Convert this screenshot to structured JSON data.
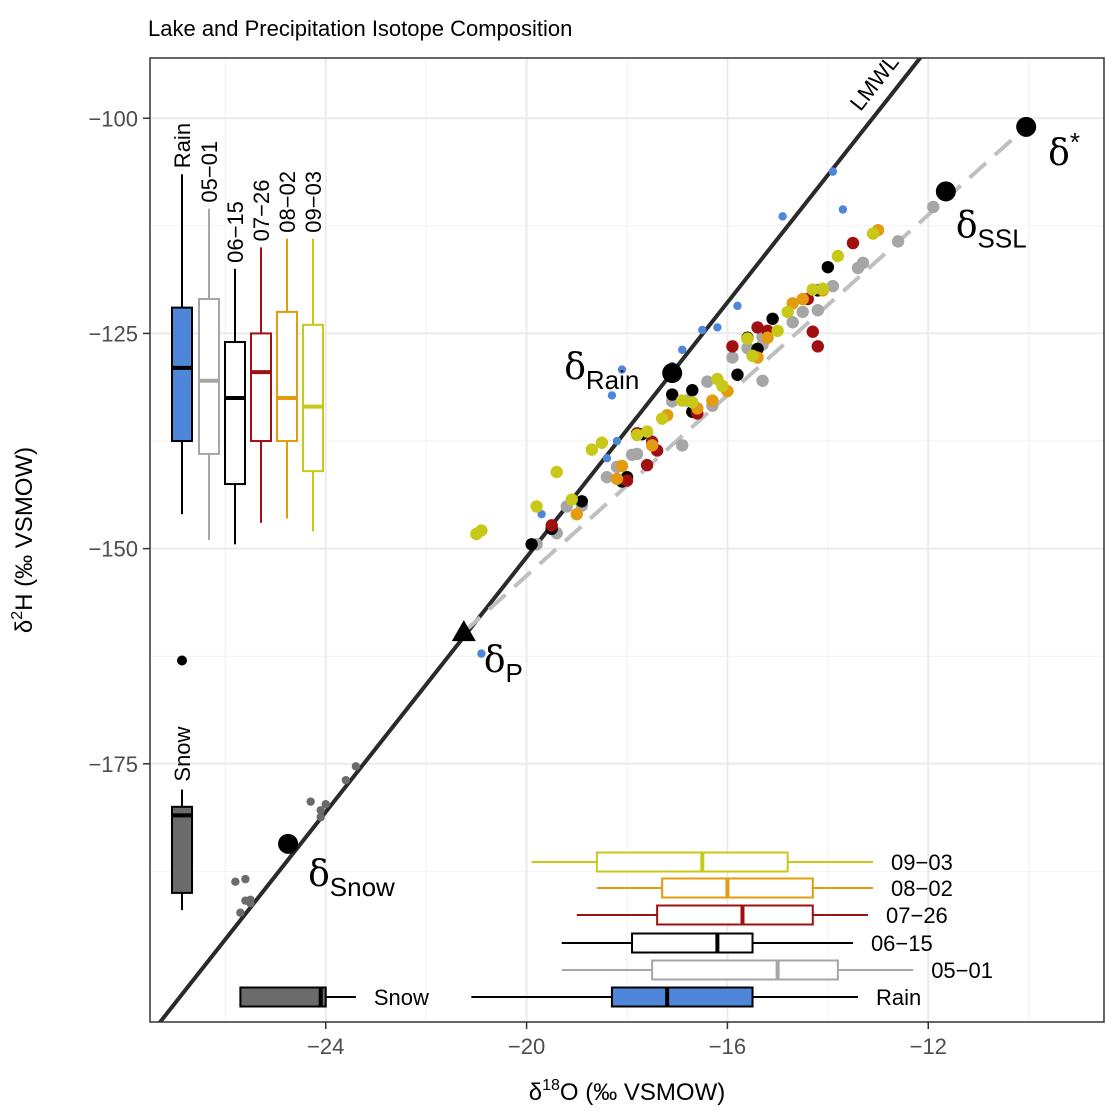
{
  "chart_data": {
    "type": "scatter",
    "title": "Lake and Precipitation Isotope Composition",
    "xlabel": {
      "main": "δ",
      "sup": "18",
      "rest": "O (‰ VSMOW)"
    },
    "ylabel": {
      "main": "δ",
      "sup": "2",
      "rest": "H (‰ VSMOW)"
    },
    "xlim": [
      -27.5,
      -8.5
    ],
    "ylim": [
      -205,
      -93
    ],
    "x_ticks": [
      -24,
      -20,
      -16,
      -12
    ],
    "x_tick_labels": [
      "−24",
      "−20",
      "−16",
      "−12"
    ],
    "y_ticks": [
      -175,
      -150,
      -125,
      -100
    ],
    "y_tick_labels": [
      "−175",
      "−150",
      "−125",
      "−100"
    ],
    "grid": true,
    "colors": {
      "Rain": "#4e86d9",
      "Snow": "#6b6b6b",
      "05-01": "#a6a6a6",
      "06-15": "#000000",
      "07-26": "#a01010",
      "08-02": "#e39b0f",
      "09-03": "#c8c818",
      "trend": "#bfbfbf",
      "lmwl": "#2a2a2a"
    },
    "lmwl": {
      "label": "LMWL",
      "slope": 7.4,
      "intercept": -3.0
    },
    "evaporation_line": {
      "from": [
        -21.25,
        -159.7
      ],
      "to": [
        -10.05,
        -101.0
      ]
    },
    "key_points": [
      {
        "name": "δ*",
        "symbol": "δ",
        "sub": "",
        "sup": "*",
        "x": -10.05,
        "y": -101.0,
        "marker": "circle"
      },
      {
        "name": "δSSL",
        "symbol": "δ",
        "sub": "SSL",
        "sup": "",
        "x": -11.65,
        "y": -108.5,
        "marker": "circle"
      },
      {
        "name": "δRain",
        "symbol": "δ",
        "sub": "Rain",
        "sup": "",
        "x": -17.1,
        "y": -129.6,
        "marker": "circle"
      },
      {
        "name": "δP",
        "symbol": "δ",
        "sub": "P",
        "sup": "",
        "x": -21.25,
        "y": -159.7,
        "marker": "triangle"
      },
      {
        "name": "δSnow",
        "symbol": "δ",
        "sub": "Snow",
        "sup": "",
        "x": -24.75,
        "y": -184.3,
        "marker": "circle"
      }
    ],
    "series": [
      {
        "name": "Rain",
        "size": "small",
        "points": [
          [
            -13.9,
            -106.2
          ],
          [
            -14.9,
            -111.4
          ],
          [
            -13.7,
            -110.6
          ],
          [
            -18.1,
            -129.2
          ],
          [
            -16.9,
            -126.9
          ],
          [
            -15.8,
            -121.8
          ],
          [
            -16.5,
            -124.6
          ],
          [
            -17.1,
            -128.8
          ],
          [
            -16.2,
            -124.3
          ],
          [
            -18.3,
            -132.2
          ],
          [
            -18.2,
            -137.5
          ],
          [
            -19.7,
            -146.0
          ],
          [
            -20.9,
            -162.2
          ],
          [
            -18.4,
            -139.5
          ]
        ]
      },
      {
        "name": "Snow",
        "size": "small",
        "points": [
          [
            -23.4,
            -175.3
          ],
          [
            -23.6,
            -176.9
          ],
          [
            -24.0,
            -179.7
          ],
          [
            -24.1,
            -180.4
          ],
          [
            -24.1,
            -181.2
          ],
          [
            -24.3,
            -179.4
          ],
          [
            -25.8,
            -188.7
          ],
          [
            -25.6,
            -188.4
          ],
          [
            -25.5,
            -190.8
          ],
          [
            -25.5,
            -191.2
          ],
          [
            -25.7,
            -192.3
          ],
          [
            -25.6,
            -190.9
          ]
        ]
      },
      {
        "name": "05-01",
        "size": "large",
        "points": [
          [
            -11.9,
            -110.3
          ],
          [
            -12.6,
            -114.3
          ],
          [
            -13.4,
            -117.4
          ],
          [
            -13.9,
            -119.5
          ],
          [
            -14.5,
            -122.5
          ],
          [
            -14.7,
            -123.7
          ],
          [
            -15.3,
            -125.4
          ],
          [
            -15.3,
            -126.3
          ],
          [
            -15.9,
            -127.8
          ],
          [
            -16.4,
            -130.6
          ],
          [
            -17.1,
            -132.9
          ],
          [
            -17.6,
            -136.6
          ],
          [
            -18.4,
            -141.7
          ],
          [
            -19.2,
            -145.1
          ],
          [
            -19.4,
            -148.2
          ],
          [
            -19.8,
            -149.5
          ],
          [
            -15.3,
            -130.5
          ],
          [
            -16.3,
            -133.4
          ],
          [
            -17.9,
            -139.1
          ],
          [
            -18.2,
            -140.5
          ],
          [
            -18.9,
            -145.0
          ],
          [
            -16.9,
            -138.0
          ],
          [
            -13.3,
            -116.8
          ],
          [
            -14.2,
            -122.3
          ],
          [
            -15.6,
            -126.7
          ],
          [
            -16.8,
            -132.8
          ],
          [
            -17.8,
            -139.0
          ]
        ]
      },
      {
        "name": "06-15",
        "size": "large",
        "points": [
          [
            -14.0,
            -117.3
          ],
          [
            -14.2,
            -120.0
          ],
          [
            -15.1,
            -123.3
          ],
          [
            -15.6,
            -125.5
          ],
          [
            -15.8,
            -129.8
          ],
          [
            -16.7,
            -131.6
          ],
          [
            -17.1,
            -132.1
          ],
          [
            -16.7,
            -134.1
          ],
          [
            -17.7,
            -136.7
          ],
          [
            -18.0,
            -141.7
          ],
          [
            -18.1,
            -142.2
          ],
          [
            -18.9,
            -144.5
          ],
          [
            -19.5,
            -147.7
          ],
          [
            -19.9,
            -149.5
          ],
          [
            -15.4,
            -126.8
          ]
        ]
      },
      {
        "name": "07-26",
        "size": "large",
        "points": [
          [
            -13.5,
            -114.5
          ],
          [
            -14.4,
            -121.0
          ],
          [
            -15.2,
            -124.7
          ],
          [
            -14.3,
            -124.8
          ],
          [
            -14.2,
            -126.5
          ],
          [
            -15.9,
            -126.5
          ],
          [
            -16.6,
            -134.3
          ],
          [
            -17.5,
            -137.6
          ],
          [
            -17.8,
            -136.6
          ],
          [
            -17.6,
            -140.3
          ],
          [
            -18.0,
            -142.1
          ],
          [
            -19.5,
            -147.3
          ],
          [
            -17.4,
            -138.6
          ],
          [
            -15.4,
            -124.3
          ]
        ]
      },
      {
        "name": "08-02",
        "size": "large",
        "points": [
          [
            -13.0,
            -113.0
          ],
          [
            -14.1,
            -120.0
          ],
          [
            -14.7,
            -121.5
          ],
          [
            -15.2,
            -125.5
          ],
          [
            -15.4,
            -127.8
          ],
          [
            -16.0,
            -131.7
          ],
          [
            -16.6,
            -133.7
          ],
          [
            -17.2,
            -134.5
          ],
          [
            -18.2,
            -141.9
          ],
          [
            -19.0,
            -146.0
          ],
          [
            -14.5,
            -121.0
          ],
          [
            -16.3,
            -132.8
          ],
          [
            -17.5,
            -138.0
          ],
          [
            -18.1,
            -140.4
          ]
        ]
      },
      {
        "name": "09-03",
        "size": "large",
        "points": [
          [
            -13.1,
            -113.4
          ],
          [
            -13.8,
            -116.0
          ],
          [
            -14.3,
            -119.9
          ],
          [
            -14.1,
            -119.8
          ],
          [
            -14.8,
            -122.5
          ],
          [
            -15.0,
            -124.7
          ],
          [
            -15.6,
            -125.6
          ],
          [
            -15.5,
            -127.6
          ],
          [
            -16.2,
            -130.3
          ],
          [
            -16.9,
            -132.8
          ],
          [
            -17.3,
            -134.9
          ],
          [
            -17.8,
            -136.8
          ],
          [
            -18.5,
            -137.7
          ],
          [
            -19.1,
            -144.3
          ],
          [
            -19.4,
            -141.1
          ],
          [
            -19.8,
            -145.1
          ],
          [
            -20.9,
            -147.9
          ],
          [
            -21.0,
            -148.3
          ],
          [
            -16.1,
            -131.1
          ],
          [
            -16.7,
            -133.0
          ],
          [
            -17.6,
            -136.4
          ],
          [
            -18.7,
            -138.5
          ]
        ]
      }
    ],
    "boxplots_vertical": [
      {
        "label": "Rain",
        "min": -146,
        "q1": -137.5,
        "median": -129,
        "q3": -122,
        "max": -106.5
      },
      {
        "label": "05−01",
        "min": -149,
        "q1": -139,
        "median": -130.5,
        "q3": -121,
        "max": -110.5
      },
      {
        "label": "06−15",
        "min": -149.5,
        "q1": -142.5,
        "median": -132.5,
        "q3": -126,
        "max": -117.5
      },
      {
        "label": "07−26",
        "min": -147,
        "q1": -137.5,
        "median": -129.5,
        "q3": -125,
        "max": -115
      },
      {
        "label": "08−02",
        "min": -146.5,
        "q1": -137.5,
        "median": -132.5,
        "q3": -122.5,
        "max": -114
      },
      {
        "label": "09−03",
        "min": -148,
        "q1": -141,
        "median": -133.5,
        "q3": -124,
        "max": -114
      },
      {
        "label": "Snow",
        "min": -192,
        "q1": -190,
        "median": -181,
        "q3": -180,
        "max": -178,
        "outlier": -163
      }
    ],
    "boxplots_horizontal": [
      {
        "label": "09−03",
        "min": -19.9,
        "q1": -18.6,
        "median": -16.5,
        "q3": -14.8,
        "max": -13.1
      },
      {
        "label": "08−02",
        "min": -18.6,
        "q1": -17.3,
        "median": -16.0,
        "q3": -14.3,
        "max": -13.1
      },
      {
        "label": "07−26",
        "min": -19.0,
        "q1": -17.4,
        "median": -15.7,
        "q3": -14.3,
        "max": -13.2
      },
      {
        "label": "06−15",
        "min": -19.3,
        "q1": -17.9,
        "median": -16.2,
        "q3": -15.5,
        "max": -13.5
      },
      {
        "label": "05−01",
        "min": -19.3,
        "q1": -17.5,
        "median": -15.0,
        "q3": -13.8,
        "max": -12.3
      },
      {
        "label": "Rain",
        "min": -21.1,
        "q1": -18.3,
        "median": -17.2,
        "q3": -15.5,
        "max": -13.4
      },
      {
        "label": "Snow",
        "min": -25.7,
        "q1": -25.7,
        "median": -24.1,
        "q3": -24.0,
        "max": -23.4
      }
    ]
  }
}
